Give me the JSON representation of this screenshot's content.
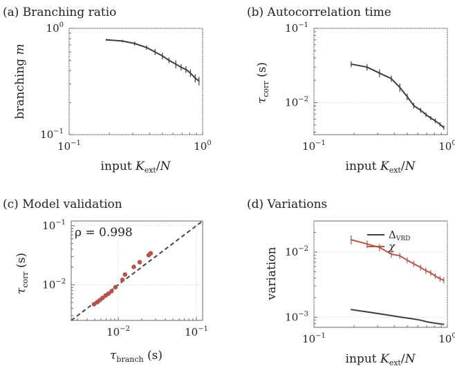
{
  "chart_data": [
    {
      "id": "a",
      "type": "line",
      "title": "(a) Branching ratio",
      "xlabel": "input K_ext/N",
      "ylabel": "branching m",
      "xscale": "log",
      "yscale": "log",
      "xlim": [
        0.1,
        1.0
      ],
      "ylim": [
        0.1,
        1.0
      ],
      "xticks": [
        {
          "v": 0.1,
          "b": "10",
          "e": "−1"
        },
        {
          "v": 1.0,
          "b": "10",
          "e": "0"
        }
      ],
      "yticks": [
        {
          "v": 0.1,
          "b": "10",
          "e": "−1"
        },
        {
          "v": 1.0,
          "b": "10",
          "e": "0"
        }
      ],
      "grid": true,
      "series": [
        {
          "color": "#3d3d3d",
          "x": [
            0.19,
            0.25,
            0.31,
            0.38,
            0.44,
            0.5,
            0.56,
            0.63,
            0.69,
            0.75,
            0.81,
            0.88,
            0.94
          ],
          "y": [
            0.78,
            0.76,
            0.72,
            0.66,
            0.6,
            0.55,
            0.5,
            0.46,
            0.43,
            0.41,
            0.38,
            0.34,
            0.32
          ],
          "errors": [
            0.02,
            0.02,
            0.03,
            0.03,
            0.04,
            0.04,
            0.03,
            0.04,
            0.03,
            0.03,
            0.03,
            0.03,
            0.03
          ]
        }
      ]
    },
    {
      "id": "b",
      "type": "line",
      "title": "(b) Autocorrelation time",
      "xlabel": "input K_ext/N",
      "ylabel": "τ_corr (s)",
      "xscale": "log",
      "yscale": "log",
      "xlim": [
        0.1,
        1.0
      ],
      "ylim": [
        0.0037,
        0.1
      ],
      "xticks": [
        {
          "v": 0.1,
          "b": "10",
          "e": "−1"
        },
        {
          "v": 1.0,
          "b": "10",
          "e": "0"
        }
      ],
      "yticks": [
        {
          "v": 0.01,
          "b": "10",
          "e": "−2"
        },
        {
          "v": 0.1,
          "b": "10",
          "e": "−1"
        }
      ],
      "grid": true,
      "series": [
        {
          "color": "#3d3d3d",
          "x": [
            0.19,
            0.25,
            0.31,
            0.38,
            0.44,
            0.5,
            0.56,
            0.63,
            0.69,
            0.75,
            0.81,
            0.88,
            0.94
          ],
          "y": [
            0.033,
            0.03,
            0.025,
            0.021,
            0.016,
            0.012,
            0.0091,
            0.0079,
            0.0069,
            0.0062,
            0.0057,
            0.0051,
            0.0046
          ],
          "errors": [
            0.003,
            0.003,
            0.003,
            0.002,
            0.002,
            0.0012,
            0.0008,
            0.0006,
            0.0005,
            0.0004,
            0.0004,
            0.0003,
            0.0003
          ]
        }
      ]
    },
    {
      "id": "c",
      "type": "scatter",
      "title": "(c) Model validation",
      "xlabel": "τ_branch (s)",
      "ylabel": "τ_corr (s)",
      "annotation": "ρ = 0.998",
      "xscale": "log",
      "yscale": "log",
      "xlim": [
        0.0025,
        0.12
      ],
      "ylim": [
        0.0025,
        0.12
      ],
      "xticks": [
        {
          "v": 0.01,
          "b": "10",
          "e": "−2"
        },
        {
          "v": 0.1,
          "b": "10",
          "e": "−1"
        }
      ],
      "yticks": [
        {
          "v": 0.01,
          "b": "10",
          "e": "−2"
        },
        {
          "v": 0.1,
          "b": "10",
          "e": "−1"
        }
      ],
      "grid": true,
      "identity_line": true,
      "series": [
        {
          "color": "#b3554b",
          "x": [
            0.0049,
            0.0054,
            0.0058,
            0.0063,
            0.0069,
            0.0075,
            0.0082,
            0.0092,
            0.0113,
            0.0122,
            0.0158,
            0.0188,
            0.0245,
            0.026
          ],
          "y": [
            0.0047,
            0.0051,
            0.0055,
            0.006,
            0.0066,
            0.0071,
            0.0078,
            0.0091,
            0.0121,
            0.0149,
            0.0201,
            0.0241,
            0.0318,
            0.0341
          ]
        }
      ]
    },
    {
      "id": "d",
      "type": "line",
      "title": "(d) Variations",
      "xlabel": "input K_ext/N",
      "ylabel": "variation",
      "xscale": "log",
      "yscale": "log",
      "xlim": [
        0.1,
        1.0
      ],
      "ylim": [
        0.0007,
        0.03
      ],
      "xticks": [
        {
          "v": 0.1,
          "b": "10",
          "e": "−1"
        },
        {
          "v": 1.0,
          "b": "10",
          "e": "0"
        }
      ],
      "yticks": [
        {
          "v": 0.001,
          "b": "10",
          "e": "−3"
        },
        {
          "v": 0.01,
          "b": "10",
          "e": "−2"
        }
      ],
      "grid": true,
      "legend": "top-right",
      "series": [
        {
          "name": "Δ_VRD",
          "color": "#3d3d3d",
          "x": [
            0.19,
            0.25,
            0.31,
            0.38,
            0.44,
            0.5,
            0.56,
            0.63,
            0.69,
            0.75,
            0.81,
            0.88,
            0.94
          ],
          "y": [
            0.00131,
            0.00121,
            0.00113,
            0.00106,
            0.00101,
            0.00097,
            0.00094,
            0.0009,
            0.00086,
            0.00083,
            0.00081,
            0.00079,
            0.00078
          ]
        },
        {
          "name": "χ",
          "color": "#b3554b",
          "x": [
            0.19,
            0.25,
            0.31,
            0.38,
            0.44,
            0.5,
            0.56,
            0.63,
            0.69,
            0.75,
            0.81,
            0.88,
            0.94
          ],
          "y": [
            0.0155,
            0.0133,
            0.0118,
            0.0093,
            0.0088,
            0.0075,
            0.0066,
            0.0058,
            0.0052,
            0.0048,
            0.0043,
            0.0039,
            0.0037
          ],
          "errors": [
            0.0025,
            0.0018,
            0.0015,
            0.0011,
            0.0009,
            0.0008,
            0.0007,
            0.0006,
            0.0006,
            0.0005,
            0.0004,
            0.0004,
            0.0004
          ]
        }
      ]
    }
  ]
}
